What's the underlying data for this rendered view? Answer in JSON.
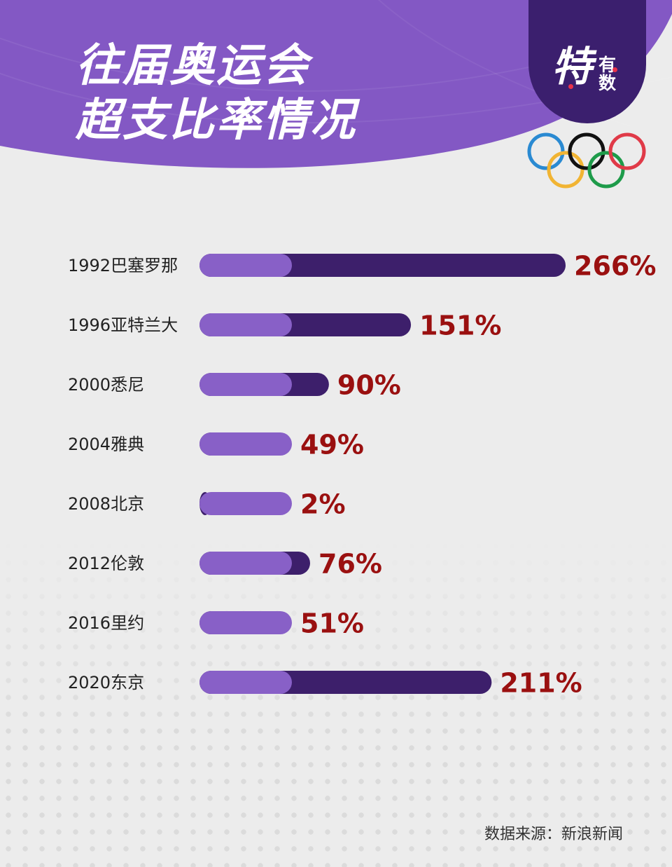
{
  "header": {
    "title_line1": "往届奥运会",
    "title_line2": "超支比率情况",
    "bg_color": "#8358c4"
  },
  "brand": {
    "main": "特",
    "sub_line1": "有",
    "sub_line2": "数"
  },
  "olympic_rings": {
    "colors": [
      "#2a8ad2",
      "#f1b433",
      "#111111",
      "#1e9b4a",
      "#e03a48"
    ]
  },
  "chart_data": {
    "type": "bar",
    "orientation": "horizontal",
    "title": "往届奥运会超支比率情况",
    "categories": [
      "1992巴塞罗那",
      "1996亚特兰大",
      "2000悉尼",
      "2004雅典",
      "2008北京",
      "2012伦敦",
      "2016里约",
      "2020东京"
    ],
    "values": [
      266,
      151,
      90,
      49,
      2,
      76,
      51,
      211
    ],
    "value_labels": [
      "266%",
      "151%",
      "90%",
      "49%",
      "2%",
      "76%",
      "51%",
      "211%"
    ],
    "unit": "%",
    "colors": {
      "bar_base": "#8860c7",
      "bar_value": "#3d1f6b",
      "value_text": "#9a1010"
    }
  },
  "footer": {
    "source": "数据来源：新浪新闻"
  }
}
